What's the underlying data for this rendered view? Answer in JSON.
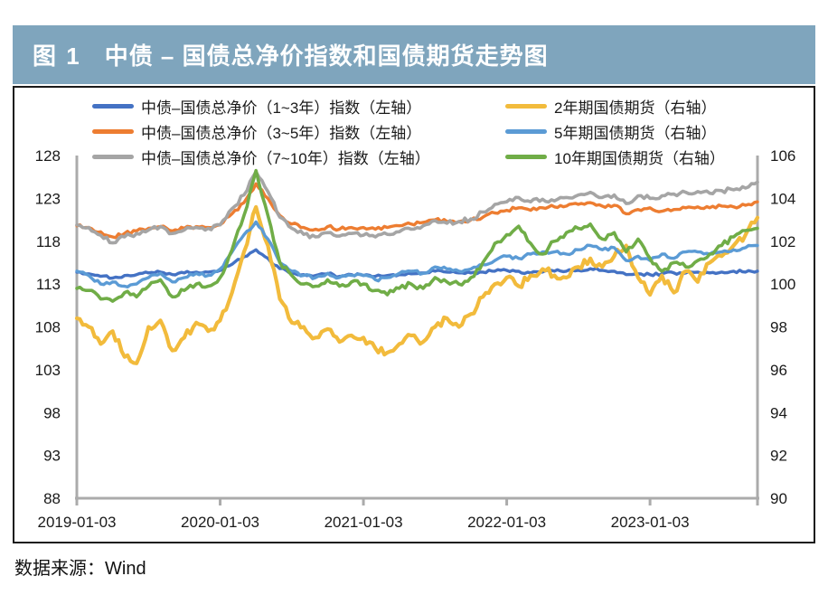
{
  "figure": {
    "label": "图 1",
    "title": "中债 – 国债总净价指数和国债期货走势图"
  },
  "footer": {
    "source_label": "数据来源：Wind"
  },
  "colors": {
    "title_bar_bg": "#7FA5BD",
    "axis_line": "#ABABAB",
    "text": "#1A1A1A"
  },
  "chart_data": {
    "type": "line",
    "title": "中债 – 国债总净价指数和国债期货走势图",
    "grid": false,
    "legend_position": "top",
    "x_interval": "monthly",
    "x_range": [
      "2019-01",
      "2023-10"
    ],
    "x_tick_labels": [
      "2019-01-03",
      "2020-01-03",
      "2021-01-03",
      "2022-01-03",
      "2023-01-03"
    ],
    "left_axis": {
      "min": 88,
      "max": 128,
      "ticks": [
        128,
        123,
        118,
        113,
        108,
        103,
        98,
        93,
        88
      ]
    },
    "right_axis": {
      "min": 90,
      "max": 106,
      "ticks": [
        106,
        104,
        102,
        100,
        98,
        96,
        94,
        92,
        90
      ]
    },
    "series": [
      {
        "name": "中债–国债总净价（1~3年）指数（左轴）",
        "axis": "left",
        "color": "#4472C4",
        "values": [
          114.4,
          114.2,
          113.9,
          113.7,
          114.0,
          114.1,
          114.3,
          114.4,
          114.1,
          114.3,
          114.4,
          114.4,
          114.6,
          115.3,
          116.2,
          117.0,
          116.0,
          114.8,
          114.3,
          114.1,
          114.0,
          114.2,
          113.9,
          114.1,
          114.0,
          113.9,
          114.0,
          114.1,
          114.2,
          114.3,
          114.5,
          114.4,
          114.3,
          114.3,
          114.4,
          114.5,
          114.6,
          114.5,
          114.3,
          114.4,
          114.5,
          114.5,
          114.6,
          114.8,
          114.6,
          114.5,
          114.1,
          114.2,
          114.1,
          114.2,
          114.3,
          114.3,
          114.4,
          114.3,
          114.4,
          114.5,
          114.4,
          114.5
        ]
      },
      {
        "name": "中债–国债总净价（3~5年）指数（左轴）",
        "axis": "left",
        "color": "#ED7D31",
        "values": [
          119.8,
          119.6,
          119.1,
          118.5,
          118.9,
          119.2,
          119.5,
          119.7,
          119.2,
          119.5,
          119.7,
          119.6,
          119.9,
          121.2,
          122.5,
          124.7,
          123.0,
          121.0,
          120.0,
          119.6,
          119.4,
          119.7,
          119.4,
          119.6,
          119.6,
          119.4,
          119.6,
          119.8,
          120.0,
          120.2,
          120.5,
          120.3,
          120.3,
          120.5,
          120.8,
          121.3,
          121.6,
          121.9,
          121.6,
          121.9,
          122.0,
          122.1,
          122.3,
          122.5,
          122.1,
          122.2,
          121.2,
          121.7,
          121.9,
          121.5,
          121.7,
          121.9,
          122.0,
          121.9,
          122.1,
          122.0,
          122.2,
          122.6
        ]
      },
      {
        "name": "中债–国债总净价（7~10年）指数（左轴）",
        "axis": "left",
        "color": "#A5A5A5",
        "values": [
          119.9,
          119.6,
          118.7,
          117.8,
          118.5,
          118.9,
          119.3,
          119.7,
          118.9,
          119.3,
          119.6,
          119.5,
          119.9,
          121.8,
          123.4,
          126.1,
          123.8,
          120.8,
          119.5,
          118.8,
          118.5,
          119.0,
          118.6,
          118.9,
          118.7,
          118.5,
          118.8,
          119.1,
          119.4,
          119.8,
          120.4,
          120.1,
          120.3,
          120.6,
          121.4,
          122.3,
          122.6,
          123.1,
          122.6,
          122.9,
          122.7,
          123.1,
          123.4,
          123.7,
          123.1,
          123.4,
          122.4,
          123.3,
          123.0,
          123.3,
          123.5,
          123.7,
          123.8,
          123.6,
          123.9,
          124.0,
          124.2,
          124.9
        ]
      },
      {
        "name": "2年期国债期货（右轴）",
        "axis": "right",
        "color": "#F2BB3C",
        "values": [
          98.4,
          98.0,
          97.2,
          97.8,
          96.6,
          96.3,
          98.0,
          98.3,
          96.9,
          97.5,
          98.2,
          97.8,
          98.3,
          99.6,
          101.5,
          103.6,
          101.8,
          99.3,
          98.2,
          98.0,
          97.5,
          97.9,
          97.3,
          97.6,
          97.5,
          97.0,
          96.8,
          97.2,
          97.6,
          97.3,
          98.0,
          98.4,
          98.0,
          98.6,
          99.4,
          100.0,
          100.3,
          99.9,
          100.4,
          100.7,
          100.4,
          100.3,
          100.8,
          101.2,
          100.8,
          101.3,
          101.8,
          100.3,
          99.5,
          100.4,
          99.6,
          100.6,
          100.1,
          101.0,
          101.3,
          101.8,
          102.3,
          103.1
        ]
      },
      {
        "name": "5年期国债期货（右轴）",
        "axis": "right",
        "color": "#5B9BD5",
        "values": [
          100.6,
          100.4,
          100.0,
          100.1,
          99.9,
          100.0,
          100.3,
          100.5,
          100.1,
          100.3,
          100.5,
          100.4,
          100.7,
          101.5,
          102.3,
          102.9,
          102.1,
          101.0,
          100.6,
          100.4,
          100.3,
          100.5,
          100.3,
          100.4,
          100.4,
          100.2,
          100.3,
          100.5,
          100.6,
          100.5,
          100.8,
          100.7,
          100.6,
          100.7,
          100.9,
          101.1,
          101.3,
          101.2,
          101.4,
          101.5,
          101.5,
          101.4,
          101.6,
          101.8,
          101.6,
          101.7,
          101.1,
          101.3,
          101.1,
          101.4,
          101.2,
          101.5,
          101.5,
          101.4,
          101.5,
          101.6,
          101.7,
          101.8
        ]
      },
      {
        "name": "10年期国债期货（右轴）",
        "axis": "right",
        "color": "#70AD47",
        "values": [
          99.8,
          99.7,
          99.3,
          99.2,
          99.6,
          99.4,
          99.9,
          100.2,
          99.4,
          99.7,
          100.0,
          99.9,
          100.3,
          101.6,
          103.2,
          105.3,
          103.2,
          101.0,
          100.4,
          100.0,
          99.9,
          100.2,
          99.9,
          100.1,
          100.0,
          99.7,
          99.5,
          99.8,
          100.0,
          99.8,
          100.3,
          100.1,
          100.0,
          100.3,
          101.0,
          101.9,
          102.3,
          102.7,
          101.9,
          101.4,
          102.0,
          102.4,
          102.6,
          102.8,
          102.1,
          102.4,
          101.5,
          102.1,
          101.2,
          100.6,
          101.0,
          100.8,
          101.1,
          101.4,
          101.8,
          102.2,
          102.5,
          102.6
        ]
      }
    ]
  }
}
